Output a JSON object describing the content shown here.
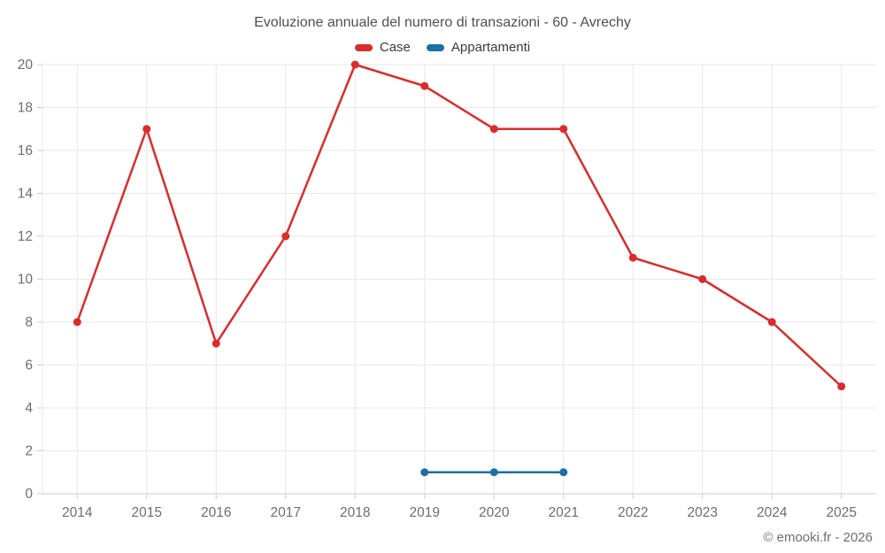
{
  "chart_data": {
    "type": "line",
    "title": "Evoluzione annuale del numero di transazioni - 60 - Avrechy",
    "categories": [
      "2014",
      "2015",
      "2016",
      "2017",
      "2018",
      "2019",
      "2020",
      "2021",
      "2022",
      "2023",
      "2024",
      "2025"
    ],
    "series": [
      {
        "name": "Case",
        "color": "#da2c2c",
        "values": [
          8,
          17,
          7,
          12,
          20,
          19,
          17,
          17,
          11,
          10,
          8,
          5
        ]
      },
      {
        "name": "Appartamenti",
        "color": "#1c6fa8",
        "values": [
          null,
          null,
          null,
          null,
          null,
          1,
          1,
          1,
          null,
          null,
          null,
          null
        ]
      }
    ],
    "ylim": [
      0,
      20
    ],
    "ytick_step": 2,
    "yticks": [
      0,
      2,
      4,
      6,
      8,
      10,
      12,
      14,
      16,
      18,
      20
    ],
    "grid": "on",
    "legend_position": "top",
    "xlabel": "",
    "ylabel": ""
  },
  "footer": {
    "copyright": "© emooki.fr - 2026"
  },
  "style_colors": {
    "grid_line": "#e7e7e7",
    "axis_line": "#cccccc",
    "tick_mark": "#cccccc",
    "tick_label": "#6e6e6e",
    "title_text": "#4f4f4f",
    "legend_text": "#3c3c3c"
  }
}
